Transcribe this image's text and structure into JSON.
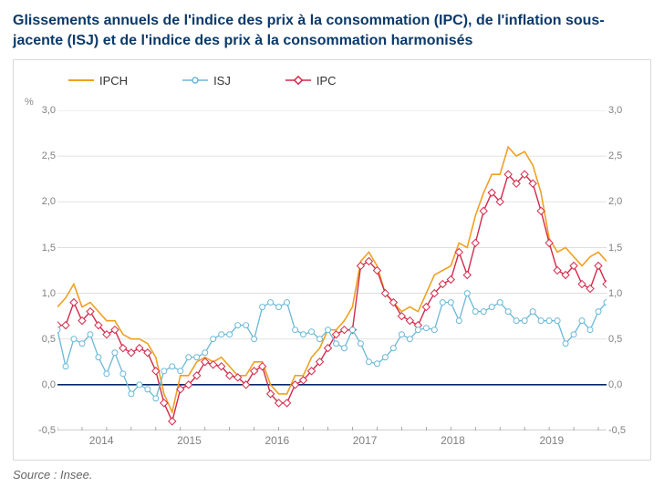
{
  "title": "Glissements annuels de l'indice des prix à la consommation (IPC), de l'inflation sous-jacente (ISJ) et de l'indice des prix à la consommation harmonisés",
  "unit_label": "%",
  "source": "Source : Insee.",
  "legend": [
    {
      "label": "IPCH",
      "color": "#f0a020",
      "type": "line"
    },
    {
      "label": "ISJ",
      "color": "#6bb8d6",
      "type": "line-marker",
      "marker": "circle"
    },
    {
      "label": "IPC",
      "color": "#d4294a",
      "type": "line-marker",
      "marker": "diamond"
    }
  ],
  "chart": {
    "type": "line",
    "background_color": "#ffffff",
    "grid_color": "#d9d9d9",
    "zero_line_color": "#002868",
    "ylim": [
      -0.5,
      3.0
    ],
    "yticks": [
      -0.5,
      0.0,
      0.5,
      1.0,
      1.5,
      2.0,
      2.5,
      3.0
    ],
    "ytick_labels": [
      "-0,5",
      "0,0",
      "0,5",
      "1,0",
      "1,5",
      "2,0",
      "2,5",
      "3,0"
    ],
    "x_years": [
      2014,
      2015,
      2016,
      2017,
      2018,
      2019
    ],
    "x_year_positions": [
      0.08,
      0.24,
      0.4,
      0.56,
      0.72,
      0.9
    ],
    "x_minor_ticks_per_year": 4,
    "n_points": 68,
    "series": {
      "IPCH": {
        "color": "#f0a020",
        "line_width": 1.6,
        "values": [
          0.85,
          0.95,
          1.1,
          0.85,
          0.9,
          0.8,
          0.7,
          0.7,
          0.55,
          0.5,
          0.5,
          0.45,
          0.3,
          -0.1,
          -0.3,
          0.1,
          0.1,
          0.25,
          0.3,
          0.25,
          0.3,
          0.2,
          0.1,
          0.1,
          0.25,
          0.25,
          0.0,
          -0.1,
          -0.1,
          0.1,
          0.1,
          0.3,
          0.4,
          0.6,
          0.6,
          0.7,
          0.85,
          1.35,
          1.45,
          1.3,
          1.0,
          0.9,
          0.8,
          0.85,
          0.8,
          1.0,
          1.2,
          1.25,
          1.3,
          1.55,
          1.5,
          1.85,
          2.1,
          2.3,
          2.3,
          2.6,
          2.5,
          2.55,
          2.4,
          2.1,
          1.6,
          1.45,
          1.5,
          1.4,
          1.3,
          1.4,
          1.45,
          1.35
        ]
      },
      "ISJ": {
        "color": "#6bb8d6",
        "line_width": 1.3,
        "marker": "circle",
        "marker_size": 3,
        "values": [
          0.6,
          0.2,
          0.5,
          0.45,
          0.55,
          0.3,
          0.12,
          0.35,
          0.12,
          -0.1,
          0.0,
          -0.05,
          -0.15,
          0.15,
          0.2,
          0.15,
          0.3,
          0.3,
          0.35,
          0.5,
          0.55,
          0.55,
          0.65,
          0.65,
          0.5,
          0.85,
          0.9,
          0.85,
          0.9,
          0.6,
          0.55,
          0.58,
          0.5,
          0.6,
          0.45,
          0.4,
          0.6,
          0.45,
          0.25,
          0.23,
          0.3,
          0.4,
          0.55,
          0.5,
          0.6,
          0.62,
          0.6,
          0.9,
          0.9,
          0.7,
          1.0,
          0.8,
          0.8,
          0.85,
          0.9,
          0.8,
          0.7,
          0.7,
          0.8,
          0.7,
          0.7,
          0.7,
          0.45,
          0.55,
          0.7,
          0.6,
          0.8,
          0.9
        ]
      },
      "IPC": {
        "color": "#d4294a",
        "line_width": 1.4,
        "marker": "diamond",
        "marker_size": 4,
        "values": [
          0.65,
          0.65,
          0.9,
          0.7,
          0.8,
          0.65,
          0.55,
          0.6,
          0.4,
          0.35,
          0.4,
          0.35,
          0.15,
          -0.2,
          -0.4,
          -0.05,
          0.0,
          0.1,
          0.25,
          0.22,
          0.2,
          0.1,
          0.08,
          0.0,
          0.15,
          0.2,
          -0.1,
          -0.2,
          -0.2,
          0.0,
          0.05,
          0.15,
          0.25,
          0.4,
          0.55,
          0.6,
          0.6,
          1.3,
          1.35,
          1.25,
          1.0,
          0.9,
          0.75,
          0.7,
          0.65,
          0.85,
          1.0,
          1.1,
          1.15,
          1.45,
          1.2,
          1.55,
          1.9,
          2.1,
          2.0,
          2.3,
          2.2,
          2.3,
          2.2,
          1.9,
          1.55,
          1.25,
          1.2,
          1.3,
          1.1,
          1.05,
          1.3,
          1.1
        ]
      }
    }
  },
  "style": {
    "title_color": "#0a3a6b",
    "title_fontsize": 16,
    "axis_label_color": "#808080",
    "axis_fontsize": 11
  }
}
